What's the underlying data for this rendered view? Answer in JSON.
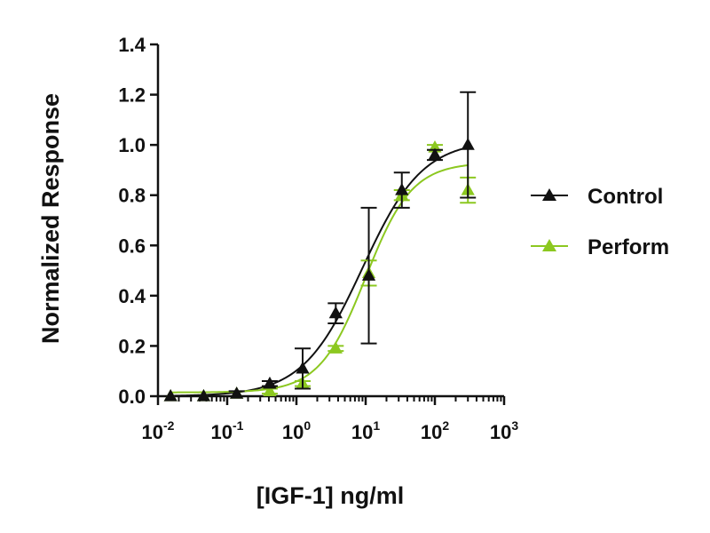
{
  "chart_data": {
    "type": "scatter",
    "title": "",
    "xlabel": "[IGF-1] ng/ml",
    "ylabel": "Normalized Response",
    "x_scale": "log",
    "xlim": [
      0.01,
      1000
    ],
    "ylim": [
      0,
      1.4
    ],
    "y_ticks": [
      "0.0",
      "0.2",
      "0.4",
      "0.6",
      "0.8",
      "1.0",
      "1.2",
      "1.4"
    ],
    "x_ticks": [
      {
        "base": "10",
        "exp": "-2"
      },
      {
        "base": "10",
        "exp": "-1"
      },
      {
        "base": "10",
        "exp": "0"
      },
      {
        "base": "10",
        "exp": "1"
      },
      {
        "base": "10",
        "exp": "2"
      },
      {
        "base": "10",
        "exp": "3"
      }
    ],
    "legend_position": "right",
    "grid": false,
    "series": [
      {
        "name": "Control",
        "color": "#111111",
        "marker": "triangle",
        "x": [
          0.0152,
          0.0457,
          0.137,
          0.412,
          1.23,
          3.7,
          11.1,
          33.3,
          100,
          300
        ],
        "y": [
          0.0,
          0.0,
          0.01,
          0.05,
          0.11,
          0.33,
          0.48,
          0.82,
          0.96,
          1.0
        ],
        "y_err": [
          0.0,
          0.0,
          0.01,
          0.01,
          0.08,
          0.04,
          0.27,
          0.07,
          0.02,
          0.21
        ],
        "fit": {
          "bottom": 0.0,
          "top": 1.02,
          "ec50": 9.0,
          "hill": 1.0
        }
      },
      {
        "name": "Perform",
        "color": "#8cc820",
        "marker": "triangle",
        "x": [
          0.0152,
          0.0457,
          0.137,
          0.412,
          1.23,
          3.7,
          11.1,
          33.3,
          100,
          300
        ],
        "y": [
          0.0,
          0.0,
          0.01,
          0.02,
          0.05,
          0.19,
          0.49,
          0.8,
          0.99,
          0.82
        ],
        "y_err": [
          0.0,
          0.0,
          0.0,
          0.01,
          0.01,
          0.01,
          0.05,
          0.02,
          0.01,
          0.05
        ],
        "fit": {
          "bottom": 0.015,
          "top": 0.93,
          "ec50": 10.0,
          "hill": 1.3
        }
      }
    ]
  }
}
